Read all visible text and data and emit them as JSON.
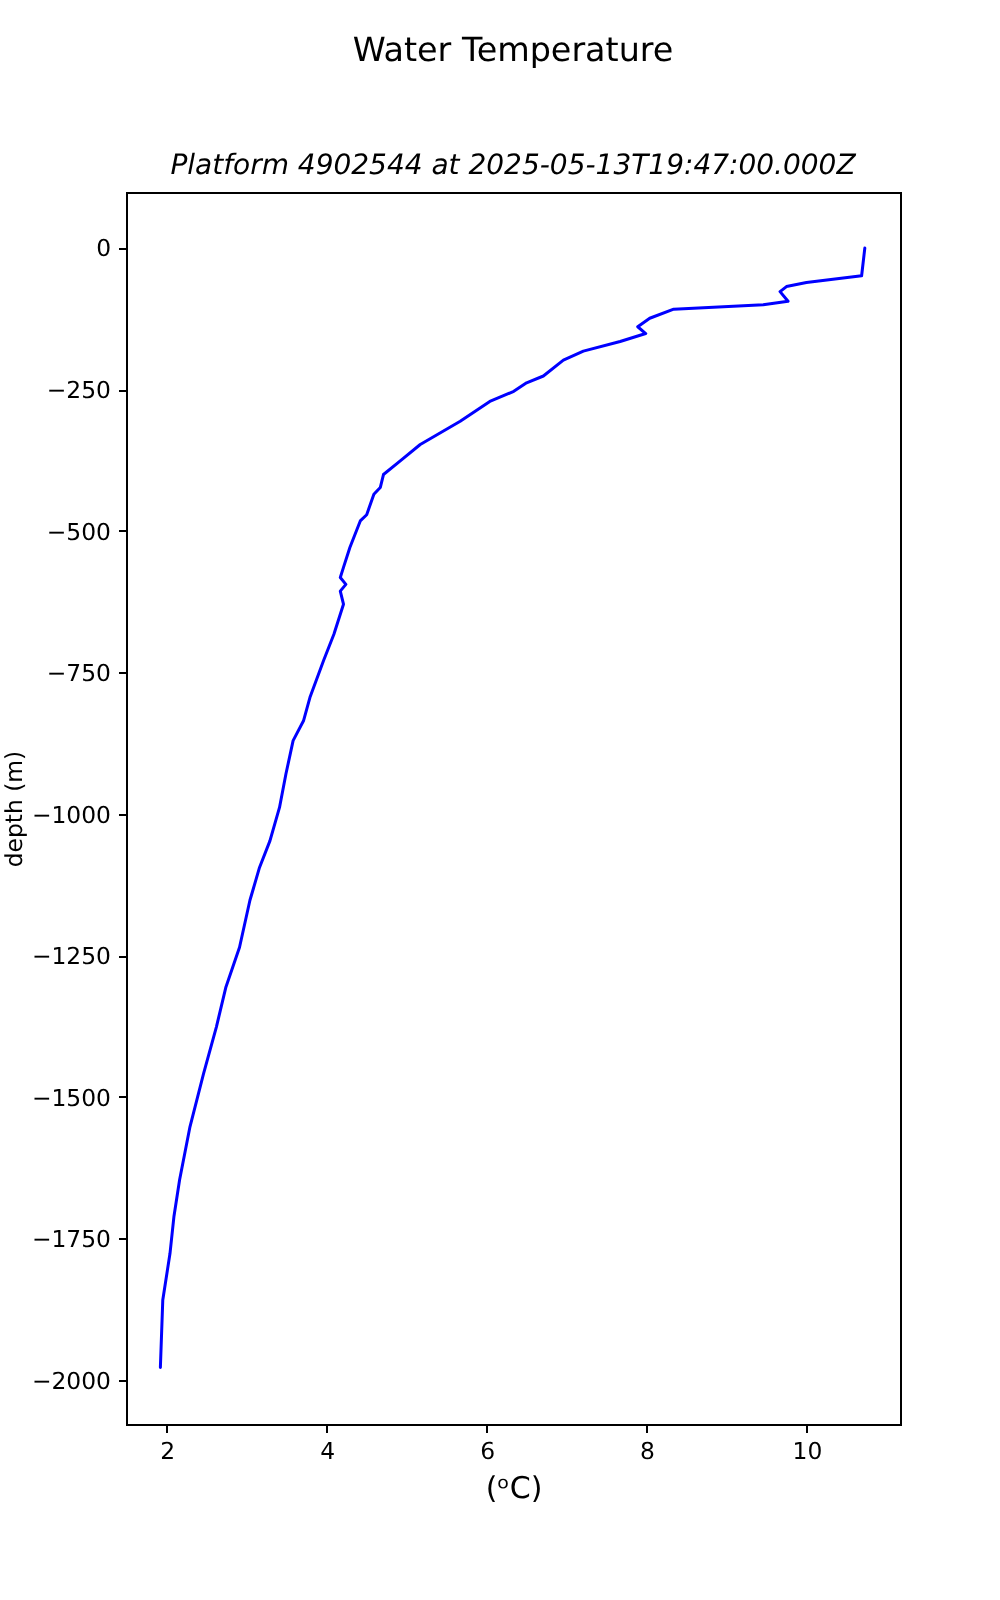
{
  "chart_data": {
    "type": "line",
    "title": "Water Temperature",
    "subtitle": "Platform 4902544 at 2025-05-13T19:47:00.000Z",
    "xlabel": "(ᵒC)",
    "ylabel": "depth (m)",
    "x": [
      10.73,
      10.69,
      10.0,
      9.75,
      9.67,
      9.77,
      9.46,
      8.34,
      8.04,
      7.89,
      7.99,
      7.67,
      7.21,
      6.96,
      6.71,
      6.5,
      6.34,
      6.04,
      5.67,
      5.17,
      4.92,
      4.71,
      4.67,
      4.59,
      4.5,
      4.42,
      4.29,
      4.21,
      4.17,
      4.24,
      4.17,
      4.21,
      4.09,
      3.96,
      3.79,
      3.71,
      3.58,
      3.49,
      3.41,
      3.29,
      3.16,
      3.04,
      2.91,
      2.74,
      2.62,
      2.46,
      2.29,
      2.16,
      2.09,
      2.04,
      1.95,
      1.92
    ],
    "series": [
      {
        "color": "#0000ff",
        "values": [
          -1,
          -50,
          -62,
          -69,
          -78,
          -95,
          -101,
          -109,
          -125,
          -140,
          -152,
          -166,
          -183,
          -199,
          -227,
          -239,
          -254,
          -272,
          -307,
          -348,
          -377,
          -401,
          -424,
          -436,
          -472,
          -483,
          -530,
          -565,
          -583,
          -595,
          -607,
          -630,
          -683,
          -730,
          -795,
          -836,
          -871,
          -930,
          -989,
          -1048,
          -1095,
          -1153,
          -1236,
          -1306,
          -1377,
          -1459,
          -1553,
          -1647,
          -1711,
          -1777,
          -1859,
          -1978
        ]
      }
    ],
    "xlim": [
      1.49,
      11.17
    ],
    "ylim": [
      -2078,
      98
    ],
    "xticks": [
      2,
      4,
      6,
      8,
      10
    ],
    "yticks": [
      0,
      -250,
      -500,
      -750,
      -1000,
      -1250,
      -1500,
      -1750,
      -2000
    ]
  }
}
